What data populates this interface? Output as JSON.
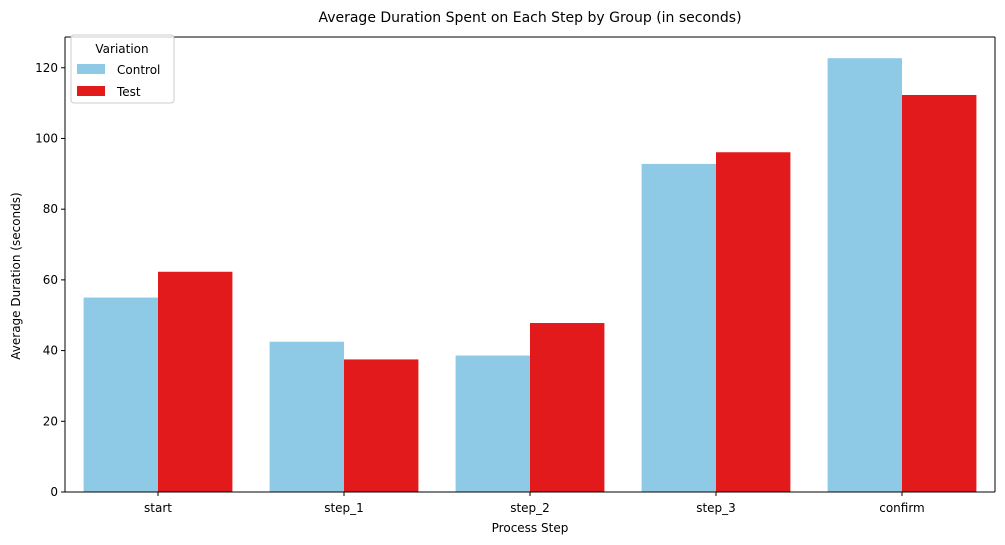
{
  "chart_data": {
    "type": "bar",
    "title": "Average Duration Spent on Each Step by Group (in seconds)",
    "xlabel": "Process Step",
    "ylabel": "Average Duration (seconds)",
    "categories": [
      "start",
      "step_1",
      "step_2",
      "step_3",
      "confirm"
    ],
    "series": [
      {
        "name": "Control",
        "color": "#8ecae6",
        "values": [
          55.0,
          42.5,
          38.6,
          92.8,
          122.7
        ]
      },
      {
        "name": "Test",
        "color": "#e31a1c",
        "values": [
          62.3,
          37.5,
          47.8,
          96.1,
          112.3
        ]
      }
    ],
    "ylim": [
      0,
      128.7
    ],
    "yticks": [
      0,
      20,
      40,
      60,
      80,
      100,
      120
    ],
    "grid": false,
    "legend": {
      "title": "Variation",
      "position": "top-left"
    }
  }
}
